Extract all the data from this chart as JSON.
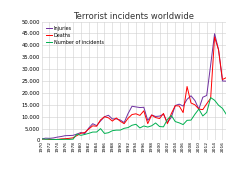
{
  "title": "Terrorist incidents worldwide",
  "years": [
    1970,
    1971,
    1972,
    1973,
    1974,
    1975,
    1976,
    1977,
    1978,
    1979,
    1980,
    1981,
    1982,
    1983,
    1984,
    1985,
    1986,
    1987,
    1988,
    1989,
    1990,
    1991,
    1992,
    1993,
    1994,
    1995,
    1996,
    1997,
    1998,
    1999,
    2000,
    2001,
    2002,
    2003,
    2004,
    2005,
    2006,
    2007,
    2008,
    2009,
    2010,
    2011,
    2012,
    2013,
    2014,
    2015,
    2016,
    2017
  ],
  "injuries": [
    592,
    938,
    870,
    1028,
    1383,
    1637,
    1983,
    2045,
    2130,
    2662,
    3322,
    2849,
    5196,
    7028,
    6215,
    8196,
    9949,
    10582,
    9038,
    9072,
    8584,
    7512,
    11305,
    14373,
    14093,
    13827,
    13937,
    8419,
    10697,
    10075,
    10231,
    11006,
    7474,
    9740,
    14688,
    15255,
    14451,
    17286,
    18765,
    16765,
    13186,
    18169,
    18913,
    31763,
    44919,
    38277,
    25010,
    24931
  ],
  "deaths": [
    173,
    173,
    341,
    421,
    390,
    631,
    718,
    854,
    1080,
    2051,
    2975,
    3354,
    4813,
    6124,
    5968,
    8612,
    9974,
    9507,
    8138,
    9432,
    8073,
    7036,
    9327,
    10886,
    11199,
    10513,
    12448,
    7059,
    10677,
    9614,
    9199,
    11357,
    7023,
    11299,
    14605,
    14486,
    11716,
    22685,
    15755,
    14971,
    13186,
    12956,
    15427,
    17745,
    43512,
    38171,
    25621,
    26445
  ],
  "incidents": [
    650,
    471,
    558,
    345,
    394,
    382,
    455,
    419,
    530,
    2661,
    2133,
    2516,
    2966,
    3510,
    3525,
    4955,
    2928,
    3227,
    4081,
    4323,
    4328,
    5083,
    5401,
    6376,
    6777,
    5232,
    6074,
    5618,
    6156,
    7338,
    5838,
    5703,
    8830,
    10477,
    7925,
    7382,
    6659,
    8442,
    8534,
    11007,
    13186,
    10283,
    11782,
    18006,
    16903,
    14806,
    13488,
    10900
  ],
  "injuries_color": "#7030a0",
  "deaths_color": "#ff0000",
  "incidents_color": "#00b050",
  "background_color": "#ffffff",
  "grid_color": "#d0d0d0",
  "ylim": [
    0,
    50000
  ],
  "yticks": [
    0,
    5000,
    10000,
    15000,
    20000,
    25000,
    30000,
    35000,
    40000,
    45000,
    50000
  ],
  "xlim": [
    1970,
    2017
  ],
  "xticks": [
    1970,
    1972,
    1974,
    1976,
    1978,
    1980,
    1982,
    1984,
    1986,
    1988,
    1990,
    1992,
    1994,
    1996,
    1998,
    2000,
    2002,
    2004,
    2006,
    2008,
    2010,
    2012,
    2014,
    2016
  ]
}
